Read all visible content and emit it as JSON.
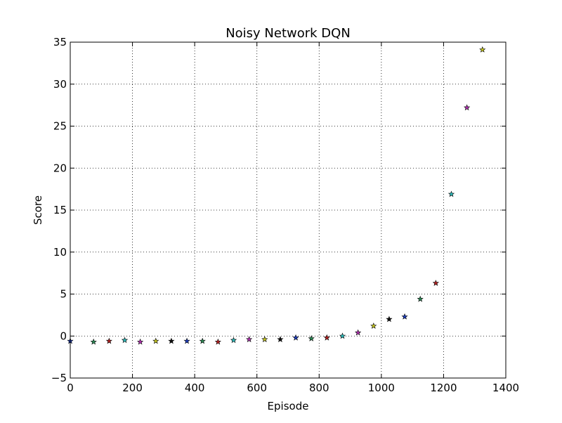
{
  "chart_data": {
    "type": "scatter",
    "title": "Noisy Network DQN",
    "xlabel": "Episode",
    "ylabel": "Score",
    "xlim": [
      0,
      1400
    ],
    "ylim": [
      -5,
      35
    ],
    "xticks": [
      0,
      200,
      400,
      600,
      800,
      1000,
      1200,
      1400
    ],
    "yticks": [
      -5,
      0,
      5,
      10,
      15,
      20,
      25,
      30,
      35
    ],
    "xtick_labels": [
      "0",
      "200",
      "400",
      "600",
      "800",
      "1000",
      "1200",
      "1400"
    ],
    "ytick_labels": [
      "−5",
      "0",
      "5",
      "10",
      "15",
      "20",
      "25",
      "30",
      "35"
    ],
    "grid": true,
    "marker": "star",
    "points": [
      {
        "x": 0,
        "y": -0.6,
        "color": "#1f3fbf"
      },
      {
        "x": 75,
        "y": -0.7,
        "color": "#2e8b57"
      },
      {
        "x": 125,
        "y": -0.6,
        "color": "#b22222"
      },
      {
        "x": 175,
        "y": -0.5,
        "color": "#2ab7b7"
      },
      {
        "x": 225,
        "y": -0.7,
        "color": "#b030b0"
      },
      {
        "x": 275,
        "y": -0.6,
        "color": "#c8c820"
      },
      {
        "x": 325,
        "y": -0.6,
        "color": "#111111"
      },
      {
        "x": 375,
        "y": -0.6,
        "color": "#1f3fbf"
      },
      {
        "x": 425,
        "y": -0.6,
        "color": "#2e8b57"
      },
      {
        "x": 475,
        "y": -0.7,
        "color": "#b22222"
      },
      {
        "x": 525,
        "y": -0.5,
        "color": "#2ab7b7"
      },
      {
        "x": 575,
        "y": -0.4,
        "color": "#b030b0"
      },
      {
        "x": 625,
        "y": -0.4,
        "color": "#c8c820"
      },
      {
        "x": 675,
        "y": -0.4,
        "color": "#111111"
      },
      {
        "x": 725,
        "y": -0.2,
        "color": "#1f3fbf"
      },
      {
        "x": 775,
        "y": -0.3,
        "color": "#2e8b57"
      },
      {
        "x": 825,
        "y": -0.2,
        "color": "#b22222"
      },
      {
        "x": 875,
        "y": 0.0,
        "color": "#2ab7b7"
      },
      {
        "x": 925,
        "y": 0.4,
        "color": "#b030b0"
      },
      {
        "x": 975,
        "y": 1.2,
        "color": "#c8c820"
      },
      {
        "x": 1025,
        "y": 2.0,
        "color": "#111111"
      },
      {
        "x": 1075,
        "y": 2.3,
        "color": "#1f3fbf"
      },
      {
        "x": 1125,
        "y": 4.4,
        "color": "#2e8b57"
      },
      {
        "x": 1175,
        "y": 6.3,
        "color": "#b22222"
      },
      {
        "x": 1225,
        "y": 16.9,
        "color": "#2ab7b7"
      },
      {
        "x": 1275,
        "y": 27.2,
        "color": "#b030b0"
      },
      {
        "x": 1325,
        "y": 34.1,
        "color": "#c8c820"
      }
    ]
  }
}
